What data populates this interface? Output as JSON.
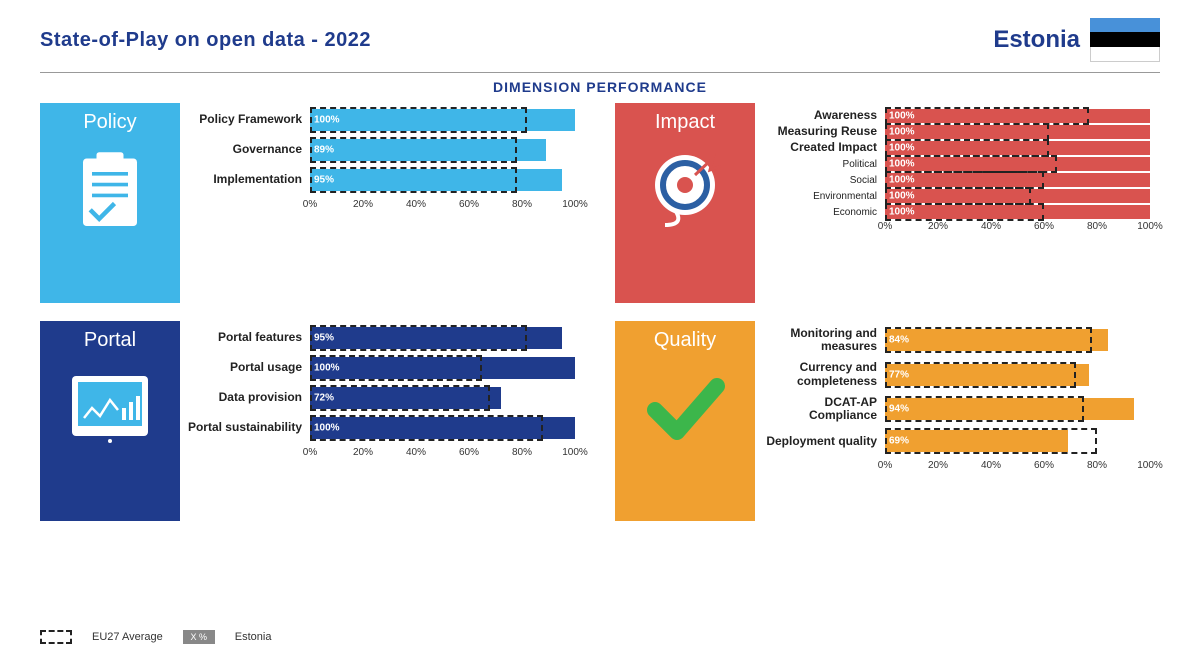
{
  "title": "State-of-Play on open data - 2022",
  "country": "Estonia",
  "flag_colors": [
    "#4891d9",
    "#000000",
    "#ffffff"
  ],
  "section_title": "DIMENSION PERFORMANCE",
  "axis_ticks": [
    0,
    20,
    40,
    60,
    80,
    100
  ],
  "legend": {
    "avg": "EU27 Average",
    "country": "Estonia",
    "pct": "X %"
  },
  "quadrants": [
    {
      "id": "policy",
      "title": "Policy",
      "color": "#3fb6e8",
      "bar_color": "#3fb6e8",
      "icon": "clipboard",
      "row_height": "big",
      "items": [
        {
          "label": "Policy Framework",
          "value": 100,
          "avg": 82
        },
        {
          "label": "Governance",
          "value": 89,
          "avg": 78
        },
        {
          "label": "Implementation",
          "value": 95,
          "avg": 78
        }
      ]
    },
    {
      "id": "impact",
      "title": "Impact",
      "color": "#d9534f",
      "bar_color": "#d9534f",
      "icon": "target",
      "row_height": "small",
      "items": [
        {
          "label": "Awareness",
          "bold": true,
          "value": 100,
          "avg": 77
        },
        {
          "label": "Measuring Reuse",
          "bold": true,
          "value": 100,
          "avg": 62
        },
        {
          "label": "Created Impact",
          "bold": true,
          "value": 100,
          "avg": 62
        },
        {
          "label": "Political",
          "bold": false,
          "value": 100,
          "avg": 65
        },
        {
          "label": "Social",
          "bold": false,
          "value": 100,
          "avg": 60
        },
        {
          "label": "Environmental",
          "bold": false,
          "value": 100,
          "avg": 55
        },
        {
          "label": "Economic",
          "bold": false,
          "value": 100,
          "avg": 60
        }
      ]
    },
    {
      "id": "portal",
      "title": "Portal",
      "color": "#1f3b8c",
      "bar_color": "#1f3b8c",
      "icon": "tablet",
      "row_height": "med",
      "items": [
        {
          "label": "Portal features",
          "value": 95,
          "avg": 82
        },
        {
          "label": "Portal usage",
          "value": 100,
          "avg": 65
        },
        {
          "label": "Data provision",
          "value": 72,
          "avg": 68
        },
        {
          "label": "Portal sustainability",
          "value": 100,
          "avg": 88
        }
      ]
    },
    {
      "id": "quality",
      "title": "Quality",
      "color": "#f0a030",
      "bar_color": "#f0a030",
      "icon": "check",
      "row_height": "med",
      "items": [
        {
          "label": "Monitoring and measures",
          "value": 84,
          "avg": 78
        },
        {
          "label": "Currency and completeness",
          "value": 77,
          "avg": 72
        },
        {
          "label": "DCAT-AP Compliance",
          "value": 94,
          "avg": 75
        },
        {
          "label": "Deployment quality",
          "value": 69,
          "avg": 80
        }
      ]
    }
  ]
}
